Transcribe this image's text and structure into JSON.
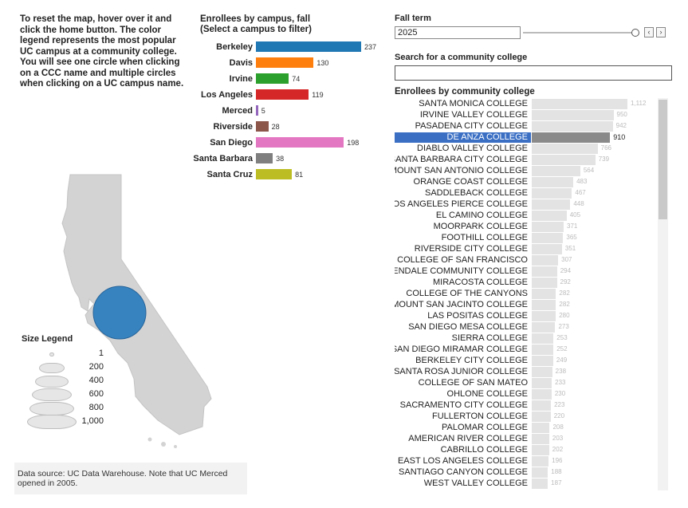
{
  "instructions": "To reset the map, hover over it and click the home button. The color legend represents the most popular UC campus at a community college. You will see one circle when clicking on a CCC name and multiple circles when clicking on a UC campus name.",
  "campus_chart": {
    "title_line1": "Enrollees by campus, fall",
    "title_line2": "(Select a campus to filter)",
    "campuses": [
      {
        "name": "Berkeley",
        "value": 237,
        "color": "#1f77b4"
      },
      {
        "name": "Davis",
        "value": 130,
        "color": "#ff7f0e"
      },
      {
        "name": "Irvine",
        "value": 74,
        "color": "#2ca02c"
      },
      {
        "name": "Los Angeles",
        "value": 119,
        "color": "#d62728"
      },
      {
        "name": "Merced",
        "value": 5,
        "color": "#9467bd"
      },
      {
        "name": "Riverside",
        "value": 28,
        "color": "#8c564b"
      },
      {
        "name": "San Diego",
        "value": 198,
        "color": "#e377c2"
      },
      {
        "name": "Santa Barbara",
        "value": 38,
        "color": "#7f7f7f"
      },
      {
        "name": "Santa Cruz",
        "value": 81,
        "color": "#bcbd22"
      }
    ]
  },
  "fall_term": {
    "title": "Fall term",
    "value": "2025",
    "prev_icon": "chevron-left-icon",
    "next_icon": "chevron-right-icon"
  },
  "search": {
    "title": "Search for a community college",
    "value": ""
  },
  "ccc_chart": {
    "title": "Enrollees by community college",
    "selected": "DE ANZA COLLEGE",
    "max_value": 1112,
    "rows": [
      {
        "name": "SANTA MONICA COLLEGE",
        "value": "1,112"
      },
      {
        "name": "IRVINE VALLEY COLLEGE",
        "value": "950"
      },
      {
        "name": "PASADENA CITY COLLEGE",
        "value": "942"
      },
      {
        "name": "DE ANZA COLLEGE",
        "value": "910"
      },
      {
        "name": "DIABLO VALLEY COLLEGE",
        "value": "766"
      },
      {
        "name": "SANTA BARBARA CITY COLLEGE",
        "value": "739"
      },
      {
        "name": "MOUNT SAN ANTONIO COLLEGE",
        "value": "564"
      },
      {
        "name": "ORANGE COAST COLLEGE",
        "value": "483"
      },
      {
        "name": "SADDLEBACK COLLEGE",
        "value": "467"
      },
      {
        "name": "LOS ANGELES PIERCE COLLEGE",
        "value": "448"
      },
      {
        "name": "EL CAMINO COLLEGE",
        "value": "405"
      },
      {
        "name": "MOORPARK COLLEGE",
        "value": "371"
      },
      {
        "name": "FOOTHILL COLLEGE",
        "value": "365"
      },
      {
        "name": "RIVERSIDE CITY COLLEGE",
        "value": "351"
      },
      {
        "name": "CITY COLLEGE OF SAN FRANCISCO",
        "value": "307"
      },
      {
        "name": "GLENDALE COMMUNITY COLLEGE",
        "value": "294"
      },
      {
        "name": "MIRACOSTA COLLEGE",
        "value": "292"
      },
      {
        "name": "COLLEGE OF THE CANYONS",
        "value": "282"
      },
      {
        "name": "MOUNT SAN JACINTO COLLEGE",
        "value": "282"
      },
      {
        "name": "LAS POSITAS COLLEGE",
        "value": "280"
      },
      {
        "name": "SAN DIEGO MESA COLLEGE",
        "value": "273"
      },
      {
        "name": "SIERRA COLLEGE",
        "value": "253"
      },
      {
        "name": "SAN DIEGO MIRAMAR COLLEGE",
        "value": "252"
      },
      {
        "name": "BERKELEY CITY COLLEGE",
        "value": "249"
      },
      {
        "name": "SANTA ROSA JUNIOR COLLEGE",
        "value": "238"
      },
      {
        "name": "COLLEGE OF SAN MATEO",
        "value": "233"
      },
      {
        "name": "OHLONE COLLEGE",
        "value": "230"
      },
      {
        "name": "SACRAMENTO CITY COLLEGE",
        "value": "223"
      },
      {
        "name": "FULLERTON COLLEGE",
        "value": "220"
      },
      {
        "name": "PALOMAR COLLEGE",
        "value": "208"
      },
      {
        "name": "AMERICAN RIVER COLLEGE",
        "value": "203"
      },
      {
        "name": "CABRILLO COLLEGE",
        "value": "202"
      },
      {
        "name": "EAST LOS ANGELES COLLEGE",
        "value": "196"
      },
      {
        "name": "SANTIAGO CANYON COLLEGE",
        "value": "188"
      },
      {
        "name": "WEST VALLEY COLLEGE",
        "value": "187"
      }
    ]
  },
  "map": {
    "circle_color": "#2e7fc0",
    "land_color": "#d3d3d3"
  },
  "size_legend": {
    "title": "Size Legend",
    "items": [
      "1",
      "200",
      "400",
      "600",
      "800",
      "1,000"
    ]
  },
  "source": "Data source: UC Data Warehouse. Note that UC Merced opened in 2005."
}
